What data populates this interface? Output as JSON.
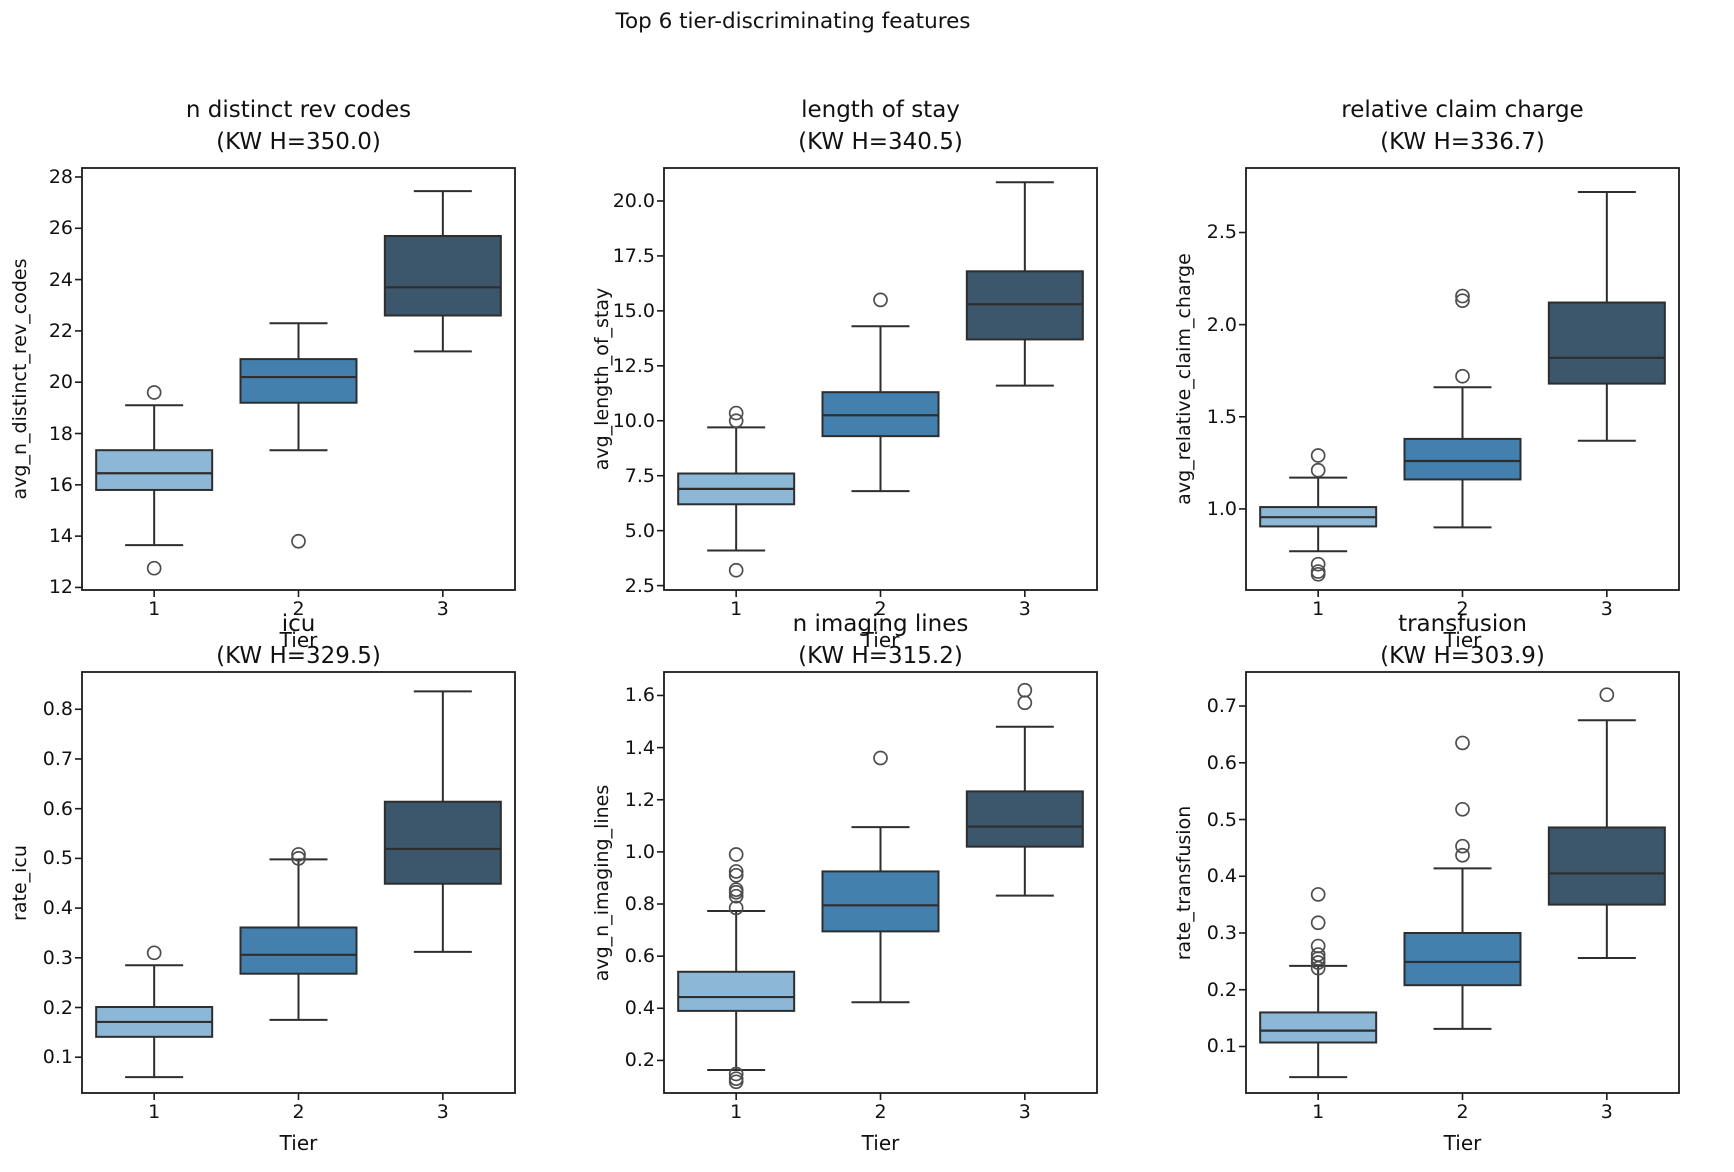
{
  "figure": {
    "suptitle": "Top 6 tier-discriminating features",
    "background": "#ffffff",
    "text_color": "#111111",
    "spine_color": "#1b1b1b",
    "box_edge_color": "#2e2e2e",
    "flier_color": "#4d4d4d",
    "tier_fill_colors": [
      "#8cb7d7",
      "#4380ae",
      "#3c566b"
    ]
  },
  "chart_data": [
    {
      "type": "box",
      "title": "n distinct rev codes",
      "subtitle": "(KW H=350.0)",
      "kw_h": 350.0,
      "ylabel": "avg_n_distinct_rev_codes",
      "xlabel": "Tier",
      "categories": [
        "1",
        "2",
        "3"
      ],
      "ytick_values": [
        12,
        14,
        16,
        18,
        20,
        22,
        24,
        26,
        28
      ],
      "ytick_labels": [
        "12",
        "14",
        "16",
        "18",
        "20",
        "22",
        "24",
        "26",
        "28"
      ],
      "ylim": [
        11.9,
        28.35
      ],
      "boxes": [
        {
          "tier": "1",
          "whislo": 13.65,
          "q1": 15.8,
          "med": 16.45,
          "q3": 17.35,
          "whishi": 19.1,
          "fliers": [
            19.6,
            12.75
          ]
        },
        {
          "tier": "2",
          "whislo": 17.35,
          "q1": 19.2,
          "med": 20.2,
          "q3": 20.9,
          "whishi": 22.3,
          "fliers": [
            13.8
          ]
        },
        {
          "tier": "3",
          "whislo": 21.2,
          "q1": 22.6,
          "med": 23.7,
          "q3": 25.7,
          "whishi": 27.45,
          "fliers": []
        }
      ]
    },
    {
      "type": "box",
      "title": "length of stay",
      "subtitle": "(KW H=340.5)",
      "kw_h": 340.5,
      "ylabel": "avg_length_of_stay",
      "xlabel": "Tier",
      "categories": [
        "1",
        "2",
        "3"
      ],
      "ytick_values": [
        2.5,
        5.0,
        7.5,
        10.0,
        12.5,
        15.0,
        17.5,
        20.0
      ],
      "ytick_labels": [
        "2.5",
        "5.0",
        "7.5",
        "10.0",
        "12.5",
        "15.0",
        "17.5",
        "20.0"
      ],
      "ylim": [
        2.3,
        21.5
      ],
      "boxes": [
        {
          "tier": "1",
          "whislo": 4.1,
          "q1": 6.2,
          "med": 6.9,
          "q3": 7.6,
          "whishi": 9.7,
          "fliers": [
            10.0,
            10.35,
            3.2
          ]
        },
        {
          "tier": "2",
          "whislo": 6.8,
          "q1": 9.3,
          "med": 10.25,
          "q3": 11.3,
          "whishi": 14.3,
          "fliers": [
            15.5
          ]
        },
        {
          "tier": "3",
          "whislo": 11.6,
          "q1": 13.7,
          "med": 15.3,
          "q3": 16.8,
          "whishi": 20.85,
          "fliers": []
        }
      ]
    },
    {
      "type": "box",
      "title": "relative claim charge",
      "subtitle": "(KW H=336.7)",
      "kw_h": 336.7,
      "ylabel": "avg_relative_claim_charge",
      "xlabel": "Tier",
      "categories": [
        "1",
        "2",
        "3"
      ],
      "ytick_values": [
        1.0,
        1.5,
        2.0,
        2.5
      ],
      "ytick_labels": [
        "1.0",
        "1.5",
        "2.0",
        "2.5"
      ],
      "ylim": [
        0.56,
        2.85
      ],
      "boxes": [
        {
          "tier": "1",
          "whislo": 0.77,
          "q1": 0.905,
          "med": 0.955,
          "q3": 1.01,
          "whishi": 1.17,
          "fliers": [
            1.29,
            1.21,
            0.7,
            0.66,
            0.645
          ]
        },
        {
          "tier": "2",
          "whislo": 0.9,
          "q1": 1.16,
          "med": 1.26,
          "q3": 1.38,
          "whishi": 1.66,
          "fliers": [
            1.72,
            2.13,
            2.155
          ]
        },
        {
          "tier": "3",
          "whislo": 1.37,
          "q1": 1.68,
          "med": 1.82,
          "q3": 2.12,
          "whishi": 2.72,
          "fliers": []
        }
      ]
    },
    {
      "type": "box",
      "title": "icu",
      "subtitle": "(KW H=329.5)",
      "kw_h": 329.5,
      "ylabel": "rate_icu",
      "xlabel": "Tier",
      "categories": [
        "1",
        "2",
        "3"
      ],
      "ytick_values": [
        0.1,
        0.2,
        0.3,
        0.4,
        0.5,
        0.6,
        0.7,
        0.8
      ],
      "ytick_labels": [
        "0.1",
        "0.2",
        "0.3",
        "0.4",
        "0.5",
        "0.6",
        "0.7",
        "0.8"
      ],
      "ylim": [
        0.028,
        0.875
      ],
      "boxes": [
        {
          "tier": "1",
          "whislo": 0.06,
          "q1": 0.141,
          "med": 0.171,
          "q3": 0.201,
          "whishi": 0.285,
          "fliers": [
            0.31
          ]
        },
        {
          "tier": "2",
          "whislo": 0.175,
          "q1": 0.268,
          "med": 0.306,
          "q3": 0.361,
          "whishi": 0.498,
          "fliers": [
            0.5,
            0.508
          ]
        },
        {
          "tier": "3",
          "whislo": 0.312,
          "q1": 0.449,
          "med": 0.519,
          "q3": 0.614,
          "whishi": 0.836,
          "fliers": []
        }
      ]
    },
    {
      "type": "box",
      "title": "n imaging lines",
      "subtitle": "(KW H=315.2)",
      "kw_h": 315.2,
      "ylabel": "avg_n_imaging_lines",
      "xlabel": "Tier",
      "categories": [
        "1",
        "2",
        "3"
      ],
      "ytick_values": [
        0.2,
        0.4,
        0.6,
        0.8,
        1.0,
        1.2,
        1.4,
        1.6
      ],
      "ytick_labels": [
        "0.2",
        "0.4",
        "0.6",
        "0.8",
        "1.0",
        "1.2",
        "1.4",
        "1.6"
      ],
      "ylim": [
        0.075,
        1.69
      ],
      "boxes": [
        {
          "tier": "1",
          "whislo": 0.163,
          "q1": 0.39,
          "med": 0.443,
          "q3": 0.54,
          "whishi": 0.773,
          "fliers": [
            0.99,
            0.925,
            0.91,
            0.855,
            0.845,
            0.83,
            0.785,
            0.148,
            0.13,
            0.118
          ]
        },
        {
          "tier": "2",
          "whislo": 0.423,
          "q1": 0.695,
          "med": 0.795,
          "q3": 0.925,
          "whishi": 1.095,
          "fliers": [
            1.36
          ]
        },
        {
          "tier": "3",
          "whislo": 0.832,
          "q1": 1.02,
          "med": 1.097,
          "q3": 1.232,
          "whishi": 1.48,
          "fliers": [
            1.62,
            1.572
          ]
        }
      ]
    },
    {
      "type": "box",
      "title": "transfusion",
      "subtitle": "(KW H=303.9)",
      "kw_h": 303.9,
      "ylabel": "rate_transfusion",
      "xlabel": "Tier",
      "categories": [
        "1",
        "2",
        "3"
      ],
      "ytick_values": [
        0.1,
        0.2,
        0.3,
        0.4,
        0.5,
        0.6,
        0.7
      ],
      "ytick_labels": [
        "0.1",
        "0.2",
        "0.3",
        "0.4",
        "0.5",
        "0.6",
        "0.7"
      ],
      "ylim": [
        0.018,
        0.76
      ],
      "boxes": [
        {
          "tier": "1",
          "whislo": 0.046,
          "q1": 0.107,
          "med": 0.128,
          "q3": 0.16,
          "whishi": 0.242,
          "fliers": [
            0.238,
            0.248,
            0.255,
            0.262,
            0.277,
            0.318,
            0.368
          ]
        },
        {
          "tier": "2",
          "whislo": 0.131,
          "q1": 0.208,
          "med": 0.249,
          "q3": 0.3,
          "whishi": 0.414,
          "fliers": [
            0.437,
            0.453,
            0.518,
            0.635
          ]
        },
        {
          "tier": "3",
          "whislo": 0.256,
          "q1": 0.35,
          "med": 0.405,
          "q3": 0.486,
          "whishi": 0.675,
          "fliers": [
            0.72
          ]
        }
      ]
    }
  ]
}
